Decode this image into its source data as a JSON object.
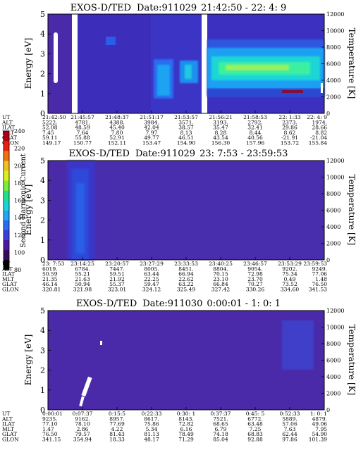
{
  "colorbar": {
    "label": "Second Harmonic Current",
    "ticks": [
      "240",
      "220",
      "200",
      "180",
      "160",
      "140",
      "120",
      "100",
      "80"
    ],
    "colors": [
      "#000000",
      "#3a0a5a",
      "#4a18a0",
      "#3b3ed8",
      "#2a6cf0",
      "#1fa6f4",
      "#1ad6d6",
      "#22e08a",
      "#7af03a",
      "#d8f020",
      "#f0c020",
      "#f07010",
      "#e82010",
      "#b00010"
    ]
  },
  "chart_data": [
    {
      "type": "heatmap",
      "title": "EXOS-D/TED",
      "date_label": "Date:911029",
      "time_range": "21:42:50 - 22: 4: 9",
      "ylabel": "Energy [eV]",
      "y2label": "Temperature [K]",
      "ylim": [
        0,
        5
      ],
      "y2lim": [
        0,
        12000
      ],
      "yticks": [
        "0",
        "1",
        "2",
        "3",
        "4",
        "5"
      ],
      "y2ticks": [
        "0",
        "2000",
        "4000",
        "6000",
        "8000",
        "10000",
        "12000"
      ],
      "row_labels": [
        "UT",
        "ALT",
        "ILAT",
        "MLT",
        "GLAT",
        "GLON"
      ],
      "columns": [
        [
          "21:42:50",
          "5222.",
          "52.08",
          "7.45",
          "59.11",
          "149.17"
        ],
        [
          "21:45:57",
          "4781.",
          "48.59",
          "7.64",
          "55.88",
          "150.77"
        ],
        [
          "21:48:37",
          "4388.",
          "45.40",
          "7.80",
          "52.91",
          "152.11"
        ],
        [
          "21:51:17",
          "3984.",
          "42.04",
          "7.97",
          "49.77",
          "153.47"
        ],
        [
          "21:53:57",
          "3571.",
          "38.57",
          "8.13",
          "46.51",
          "154.90"
        ],
        [
          "21:56:21",
          "3193.",
          "35.47",
          "8.28",
          "43.54",
          "156.30"
        ],
        [
          "21:58:53",
          "2792.",
          "32.41",
          "8.44",
          "40.56",
          "157.96"
        ],
        [
          "22: 1:33",
          "2373.",
          "29.86",
          "8.62",
          "-21.91",
          "153.72"
        ],
        [
          "22: 4: 9",
          "1974.",
          "28.66",
          "8.82",
          "-21.04",
          "155.84"
        ]
      ]
    },
    {
      "type": "heatmap",
      "title": "EXOS-D/TED",
      "date_label": "Date:911029",
      "time_range": "23: 7:53 - 23:59:53",
      "ylabel": "Energy [eV]",
      "y2label": "Temperature [K]",
      "ylim": [
        0,
        5
      ],
      "y2lim": [
        0,
        12000
      ],
      "yticks": [
        "0",
        "1",
        "2",
        "3",
        "4",
        "5"
      ],
      "y2ticks": [
        "0",
        "2000",
        "4000",
        "6000",
        "8000",
        "10000",
        "12000"
      ],
      "row_labels": [
        "UT",
        "ALT",
        "ILAT",
        "MLT",
        "GLAT",
        "GLON"
      ],
      "columns": [
        [
          "23: 7:53",
          "6019.",
          "50.59",
          "21.35",
          "46.14",
          "320.81"
        ],
        [
          "23:14:25",
          "6784.",
          "55.21",
          "21.63",
          "50.94",
          "321.98"
        ],
        [
          "23:20:57",
          "7447.",
          "59.51",
          "21.92",
          "55.37",
          "323.01"
        ],
        [
          "23:27:29",
          "8005.",
          "63.44",
          "22.25",
          "59.47",
          "324.12"
        ],
        [
          "23:33:53",
          "8451.",
          "66.94",
          "22.62",
          "63.22",
          "325.49"
        ],
        [
          "23:40:25",
          "8804.",
          "70.15",
          "23.10",
          "66.84",
          "327.42"
        ],
        [
          "23:46:57",
          "9054.",
          "72.98",
          "23.70",
          "70.27",
          "330.26"
        ],
        [
          "23:53:29",
          "9202.",
          "75.34",
          "0.49",
          "73.52",
          "334.60"
        ],
        [
          "23:59:53",
          "9249.",
          "77.06",
          "1.48",
          "76.50",
          "341.53"
        ]
      ]
    },
    {
      "type": "heatmap",
      "title": "EXOS-D/TED",
      "date_label": "Date:911030",
      "time_range": "0:00:01 - 1: 0: 1",
      "ylabel": "Energy [eV]",
      "y2label": "Temperature [K]",
      "ylim": [
        0,
        5
      ],
      "y2lim": [
        0,
        12000
      ],
      "yticks": [
        "0",
        "1",
        "2",
        "3",
        "4",
        "5"
      ],
      "y2ticks": [
        "0",
        "2000",
        "4000",
        "6000",
        "8000",
        "10000",
        "12000"
      ],
      "row_labels": [
        "UT",
        "ALT",
        "ILAT",
        "MLT",
        "GLAT",
        "GLON"
      ],
      "columns": [
        [
          "0:00:01",
          "9235.",
          "77.10",
          "1.47",
          "76.50",
          "341.15"
        ],
        [
          "0:07:37",
          "9162.",
          "78.10",
          "2.86",
          "79.57",
          "354.94"
        ],
        [
          "0:15:5",
          "8957.",
          "77.69",
          "4.22",
          "81.43",
          "18.33"
        ],
        [
          "0:22:33",
          "8617.",
          "75.86",
          "5.34",
          "81.13",
          "48.17"
        ],
        [
          "0:30: 1",
          "8143.",
          "72.82",
          "6.16",
          "78.49",
          "71.29"
        ],
        [
          "0:37:37",
          "7521.",
          "68.65",
          "6.79",
          "74.18",
          "85.04"
        ],
        [
          "0:45: 5",
          "6772.",
          "63.48",
          "7.25",
          "68.83",
          "92.88"
        ],
        [
          "0:52:33",
          "5889.",
          "57.06",
          "7.63",
          "62.44",
          "97.86"
        ],
        [
          "1: 0: 1",
          "4879.",
          "49.06",
          "7.95",
          "54.90",
          "101.39"
        ]
      ]
    }
  ]
}
